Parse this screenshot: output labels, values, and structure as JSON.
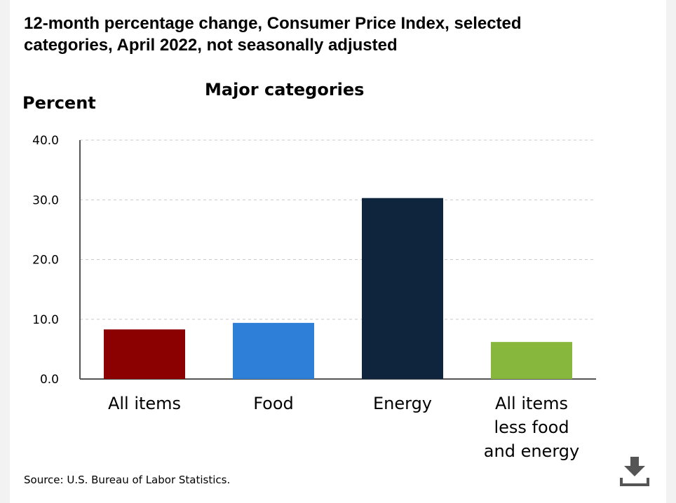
{
  "title": "12-month percentage change, Consumer Price Index, selected categories, April 2022, not seasonally adjusted",
  "source": "Source: U.S. Bureau of Labor Statistics.",
  "download": {
    "icon": "download-icon"
  },
  "chart_data": {
    "type": "bar",
    "title": "Major categories",
    "xlabel": "",
    "ylabel": "Percent",
    "ylim": [
      0,
      40
    ],
    "yticks": [
      "0.0",
      "10.0",
      "20.0",
      "30.0",
      "40.0"
    ],
    "grid": true,
    "categories": [
      [
        "All items"
      ],
      [
        "Food"
      ],
      [
        "Energy"
      ],
      [
        "All items",
        "less food",
        "and energy"
      ]
    ],
    "values": [
      8.3,
      9.4,
      30.3,
      6.2
    ],
    "colors": [
      "#8b0000",
      "#2e7fd8",
      "#0f253d",
      "#87b73c"
    ]
  }
}
